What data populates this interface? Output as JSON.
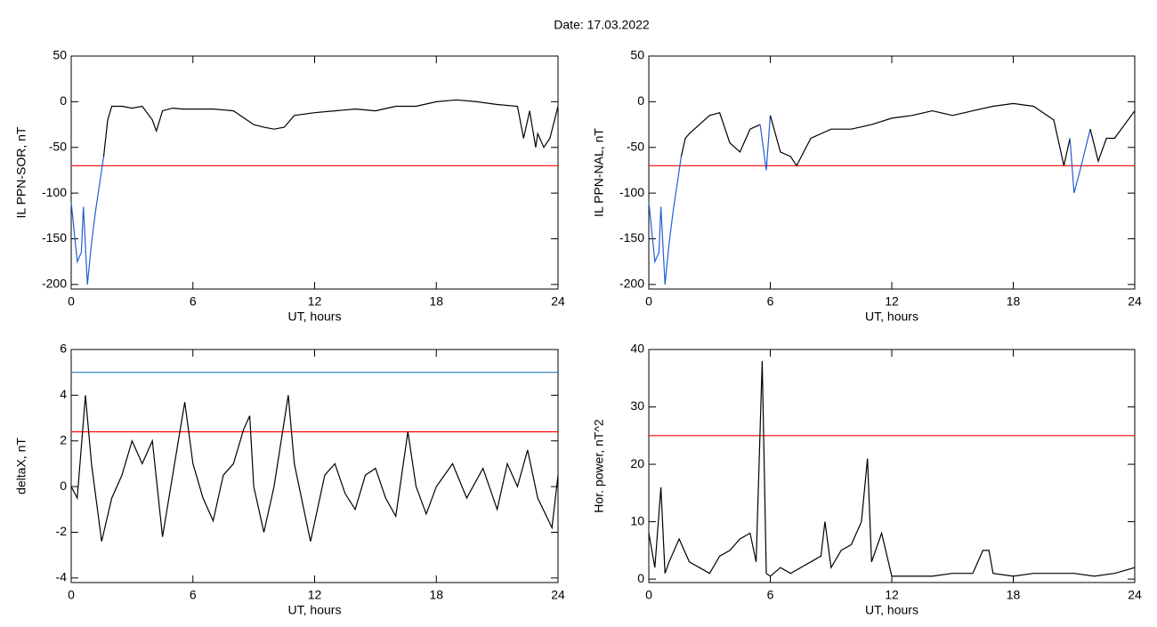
{
  "title": "Date:  17.03.2022",
  "chart_data": [
    {
      "type": "line",
      "xlabel": "UT, hours",
      "ylabel": "IL PPN-SOR, nT",
      "xlim": [
        0,
        24
      ],
      "xticks": [
        0,
        6,
        12,
        18,
        24
      ],
      "ylim": [
        -205,
        50
      ],
      "yticks": [
        -200,
        -150,
        -100,
        -50,
        0,
        50
      ],
      "color": "#000000",
      "below_threshold_color": "#1f5fd0",
      "reference_lines": [
        {
          "value": -70,
          "color": "#ff0000"
        }
      ],
      "x": [
        0,
        0.3,
        0.5,
        0.6,
        0.8,
        1,
        1.2,
        1.4,
        1.6,
        1.8,
        2,
        2.5,
        3,
        3.5,
        4,
        4.2,
        4.5,
        5,
        5.5,
        6,
        7,
        8,
        9,
        9.5,
        10,
        10.5,
        11,
        12,
        13,
        14,
        15,
        16,
        17,
        18,
        19,
        20,
        21,
        22,
        22.3,
        22.6,
        22.9,
        23,
        23.3,
        23.6,
        24
      ],
      "values": [
        -110,
        -175,
        -165,
        -115,
        -200,
        -155,
        -120,
        -90,
        -60,
        -20,
        -5,
        -5,
        -7,
        -5,
        -20,
        -32,
        -10,
        -7,
        -8,
        -8,
        -8,
        -10,
        -25,
        -28,
        -30,
        -28,
        -15,
        -12,
        -10,
        -8,
        -10,
        -5,
        -5,
        0,
        2,
        0,
        -3,
        -5,
        -40,
        -10,
        -50,
        -35,
        -50,
        -40,
        -5
      ]
    },
    {
      "type": "line",
      "xlabel": "UT, hours",
      "ylabel": "IL PPN-NAL, nT",
      "xlim": [
        0,
        24
      ],
      "xticks": [
        0,
        6,
        12,
        18,
        24
      ],
      "ylim": [
        -205,
        50
      ],
      "yticks": [
        -200,
        -150,
        -100,
        -50,
        0,
        50
      ],
      "color": "#000000",
      "below_threshold_color": "#1f5fd0",
      "reference_lines": [
        {
          "value": -70,
          "color": "#ff0000"
        }
      ],
      "x": [
        0,
        0.3,
        0.5,
        0.6,
        0.8,
        1,
        1.2,
        1.4,
        1.6,
        1.8,
        2,
        2.5,
        3,
        3.5,
        4,
        4.5,
        5,
        5.5,
        5.8,
        6,
        6.5,
        7,
        7.3,
        8,
        9,
        10,
        11,
        12,
        13,
        14,
        15,
        16,
        17,
        18,
        19,
        20,
        20.5,
        20.8,
        21,
        21.3,
        21.8,
        22.2,
        22.6,
        23,
        24
      ],
      "values": [
        -110,
        -175,
        -165,
        -115,
        -200,
        -155,
        -120,
        -90,
        -60,
        -40,
        -35,
        -25,
        -15,
        -12,
        -45,
        -55,
        -30,
        -25,
        -75,
        -15,
        -55,
        -60,
        -70,
        -40,
        -30,
        -30,
        -25,
        -18,
        -15,
        -10,
        -15,
        -10,
        -5,
        -2,
        -5,
        -20,
        -70,
        -40,
        -100,
        -75,
        -30,
        -65,
        -40,
        -40,
        -10
      ]
    },
    {
      "type": "line",
      "xlabel": "UT, hours",
      "ylabel": "deltaX, nT",
      "xlim": [
        0,
        24
      ],
      "xticks": [
        0,
        6,
        12,
        18,
        24
      ],
      "ylim": [
        -4.2,
        6
      ],
      "yticks": [
        -4,
        -2,
        0,
        2,
        4,
        6
      ],
      "color": "#000000",
      "reference_lines": [
        {
          "value": 5,
          "color": "#1f7fbf"
        },
        {
          "value": 2.4,
          "color": "#ff0000"
        }
      ],
      "x": [
        0,
        0.3,
        0.7,
        1,
        1.5,
        2,
        2.5,
        3,
        3.5,
        4,
        4.5,
        5,
        5.6,
        6,
        6.5,
        7,
        7.5,
        8,
        8.5,
        8.8,
        9,
        9.5,
        10,
        10.7,
        11,
        11.8,
        12.5,
        13,
        13.5,
        14,
        14.5,
        15,
        15.5,
        16,
        16.6,
        17,
        17.5,
        18,
        18.8,
        19.5,
        20.3,
        21,
        21.5,
        22,
        22.5,
        23,
        23.7,
        24
      ],
      "values": [
        0,
        -0.5,
        4,
        1,
        -2.4,
        -0.5,
        0.5,
        2,
        1,
        2,
        -2.2,
        0.5,
        3.7,
        1,
        -0.5,
        -1.5,
        0.5,
        1,
        2.5,
        3.1,
        0,
        -2,
        0,
        4,
        1,
        -2.4,
        0.5,
        1,
        -0.3,
        -1,
        0.5,
        0.8,
        -0.5,
        -1.3,
        2.4,
        0,
        -1.2,
        0,
        1,
        -0.5,
        0.8,
        -1,
        1,
        0,
        1.6,
        -0.5,
        -1.8,
        0.5
      ]
    },
    {
      "type": "line",
      "xlabel": "UT, hours",
      "ylabel": "Hor. power, nT^2",
      "xlim": [
        0,
        24
      ],
      "xticks": [
        0,
        6,
        12,
        18,
        24
      ],
      "ylim": [
        -0.6,
        40
      ],
      "yticks": [
        0,
        10,
        20,
        30,
        40
      ],
      "color": "#000000",
      "reference_lines": [
        {
          "value": 25,
          "color": "#ff0000"
        }
      ],
      "x": [
        0,
        0.3,
        0.6,
        0.8,
        1,
        1.5,
        2,
        2.5,
        3,
        3.5,
        4,
        4.5,
        5,
        5.3,
        5.6,
        5.8,
        6,
        6.5,
        7,
        8,
        8.5,
        8.7,
        9,
        9.5,
        10,
        10.5,
        10.8,
        11,
        11.5,
        12,
        13,
        14,
        15,
        16,
        16.5,
        16.8,
        17,
        18,
        19,
        20,
        21,
        22,
        23,
        24
      ],
      "values": [
        8,
        2,
        16,
        1,
        3,
        7,
        3,
        2,
        1,
        4,
        5,
        7,
        8,
        3,
        38,
        1,
        0.5,
        2,
        1,
        3,
        4,
        10,
        2,
        5,
        6,
        10,
        21,
        3,
        8,
        0.5,
        0.5,
        0.5,
        1,
        1,
        5,
        5,
        1,
        0.5,
        1,
        1,
        1,
        0.5,
        1,
        2
      ]
    }
  ]
}
